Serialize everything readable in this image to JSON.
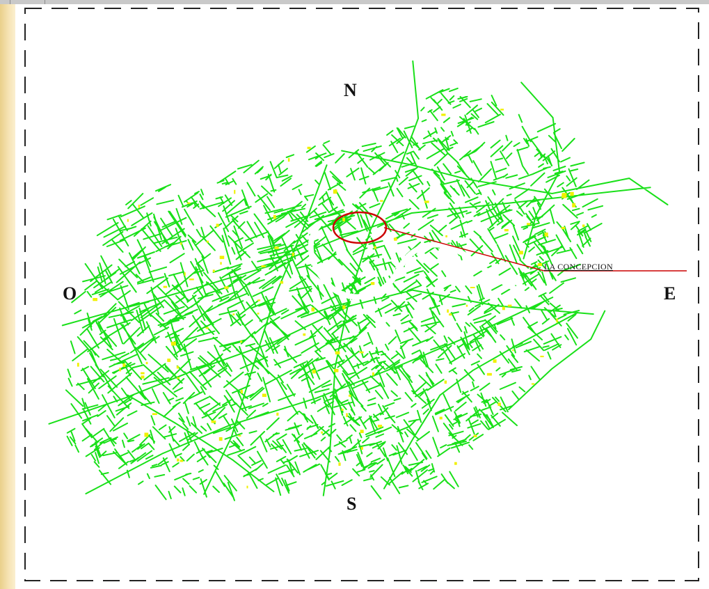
{
  "map": {
    "compass": {
      "north": "N",
      "south": "S",
      "east": "E",
      "west": "O"
    },
    "callout": {
      "label": "LA CONCEPCION"
    },
    "colors": {
      "roads": "#19e019",
      "highlights": "#f0f000",
      "callout": "#cc0000",
      "frame": "#222222",
      "left_strip": "#f3dfa8"
    }
  }
}
